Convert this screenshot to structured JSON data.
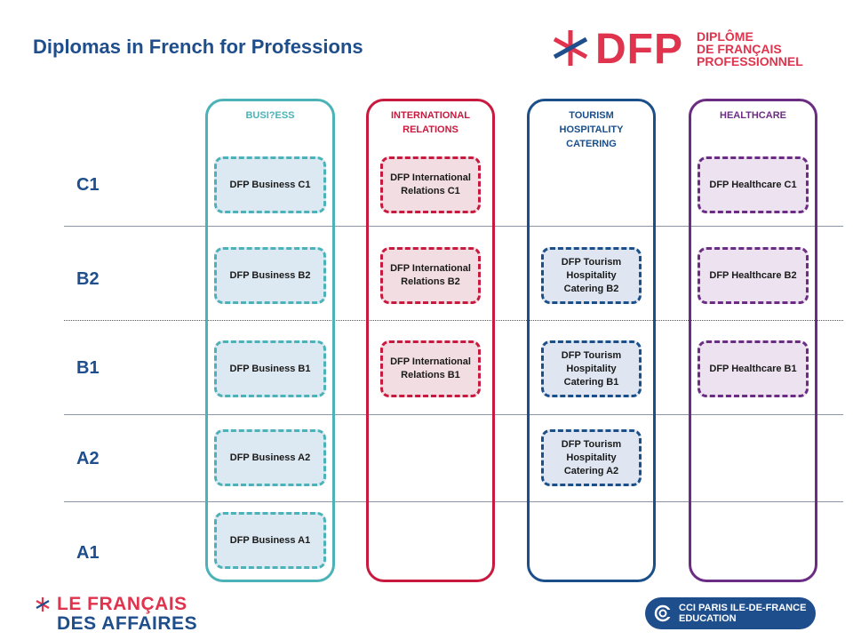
{
  "title": "Diplomas in French for Professions",
  "logo": {
    "mark": "DFP",
    "line1": "DIPLÔME",
    "line2": "DE FRANÇAIS",
    "line3": "PROFESSIONNEL"
  },
  "levels": [
    "C1",
    "B2",
    "B1",
    "A2",
    "A1"
  ],
  "columns": [
    {
      "name": "business",
      "heading": "BUSI?ESS",
      "color": "#4bb3b8",
      "fill": "#dde9f2",
      "boxes": {
        "C1": "DFP Business C1",
        "B2": "DFP Business B2",
        "B1": "DFP Business B1",
        "A2": "DFP Business A2",
        "A1": "DFP Business A1"
      }
    },
    {
      "name": "international-relations",
      "heading": "INTERNATIONAL\nRELATIONS",
      "color": "#c8193f",
      "fill": "#f2dde2",
      "boxes": {
        "C1": "DFP International\nRelations C1",
        "B2": "DFP International\nRelations B2",
        "B1": "DFP International\nRelations B1"
      }
    },
    {
      "name": "tourism",
      "heading": "TOURISM\nHOSPITALITY\nCATERING",
      "color": "#1a4f8a",
      "fill": "#dfe6f2",
      "boxes": {
        "B2": "DFP Tourism\nHospitality\nCatering  B2",
        "B1": "DFP Tourism\nHospitality\nCatering  B1",
        "A2": "DFP Tourism\nHospitality\nCatering  A2"
      }
    },
    {
      "name": "healthcare",
      "heading": "HEALTHCARE",
      "color": "#6b2d83",
      "fill": "#ece2f0",
      "boxes": {
        "C1": "DFP Healthcare C1",
        "B2": "DFP Healthcare B2",
        "B1": "DFP Healthcare B1"
      }
    }
  ],
  "footer": {
    "lfa_line1": "LE FRANÇAIS",
    "lfa_line2": "DES AFFAIRES",
    "cci_line1": "CCI PARIS ILE-DE-FRANCE",
    "cci_line2": "EDUCATION"
  },
  "colors": {
    "accent_red": "#e0334d",
    "navy": "#1f4e8c"
  },
  "icons": [
    "dfp-asterisk-icon",
    "lfa-asterisk-icon",
    "cci-logo-icon"
  ]
}
